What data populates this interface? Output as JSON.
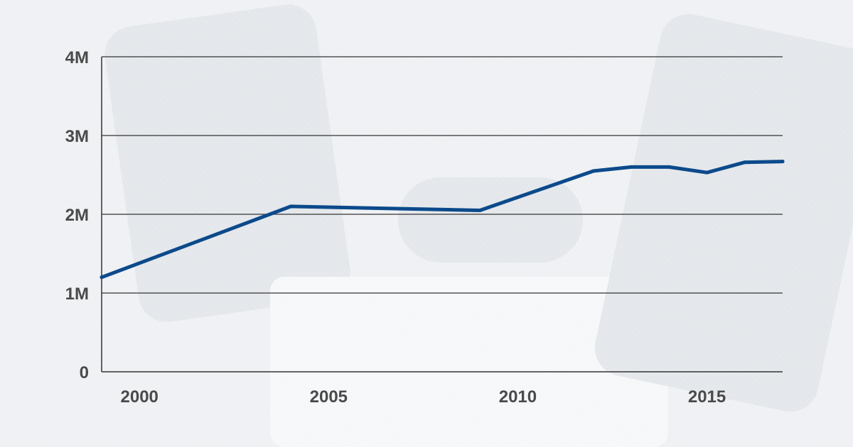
{
  "chart_data": {
    "type": "line",
    "title": "",
    "xlabel": "",
    "ylabel": "",
    "x_ticks": [
      "2000",
      "2005",
      "2010",
      "2015"
    ],
    "x_tick_values": [
      2000,
      2005,
      2010,
      2015
    ],
    "y_ticks": [
      "0",
      "1M",
      "2M",
      "3M",
      "4M"
    ],
    "y_tick_values": [
      0,
      1000000,
      2000000,
      3000000,
      4000000
    ],
    "xlim": [
      1999,
      2017
    ],
    "ylim": [
      0,
      4000000
    ],
    "grid": "horizontal",
    "legend": "none",
    "series": [
      {
        "color": "#0b4a8b",
        "x": [
          1999,
          2004,
          2009,
          2012,
          2013,
          2014,
          2015,
          2016,
          2017
        ],
        "y": [
          1200000,
          2100000,
          2050000,
          2550000,
          2600000,
          2600000,
          2530000,
          2660000,
          2670000
        ]
      }
    ]
  }
}
